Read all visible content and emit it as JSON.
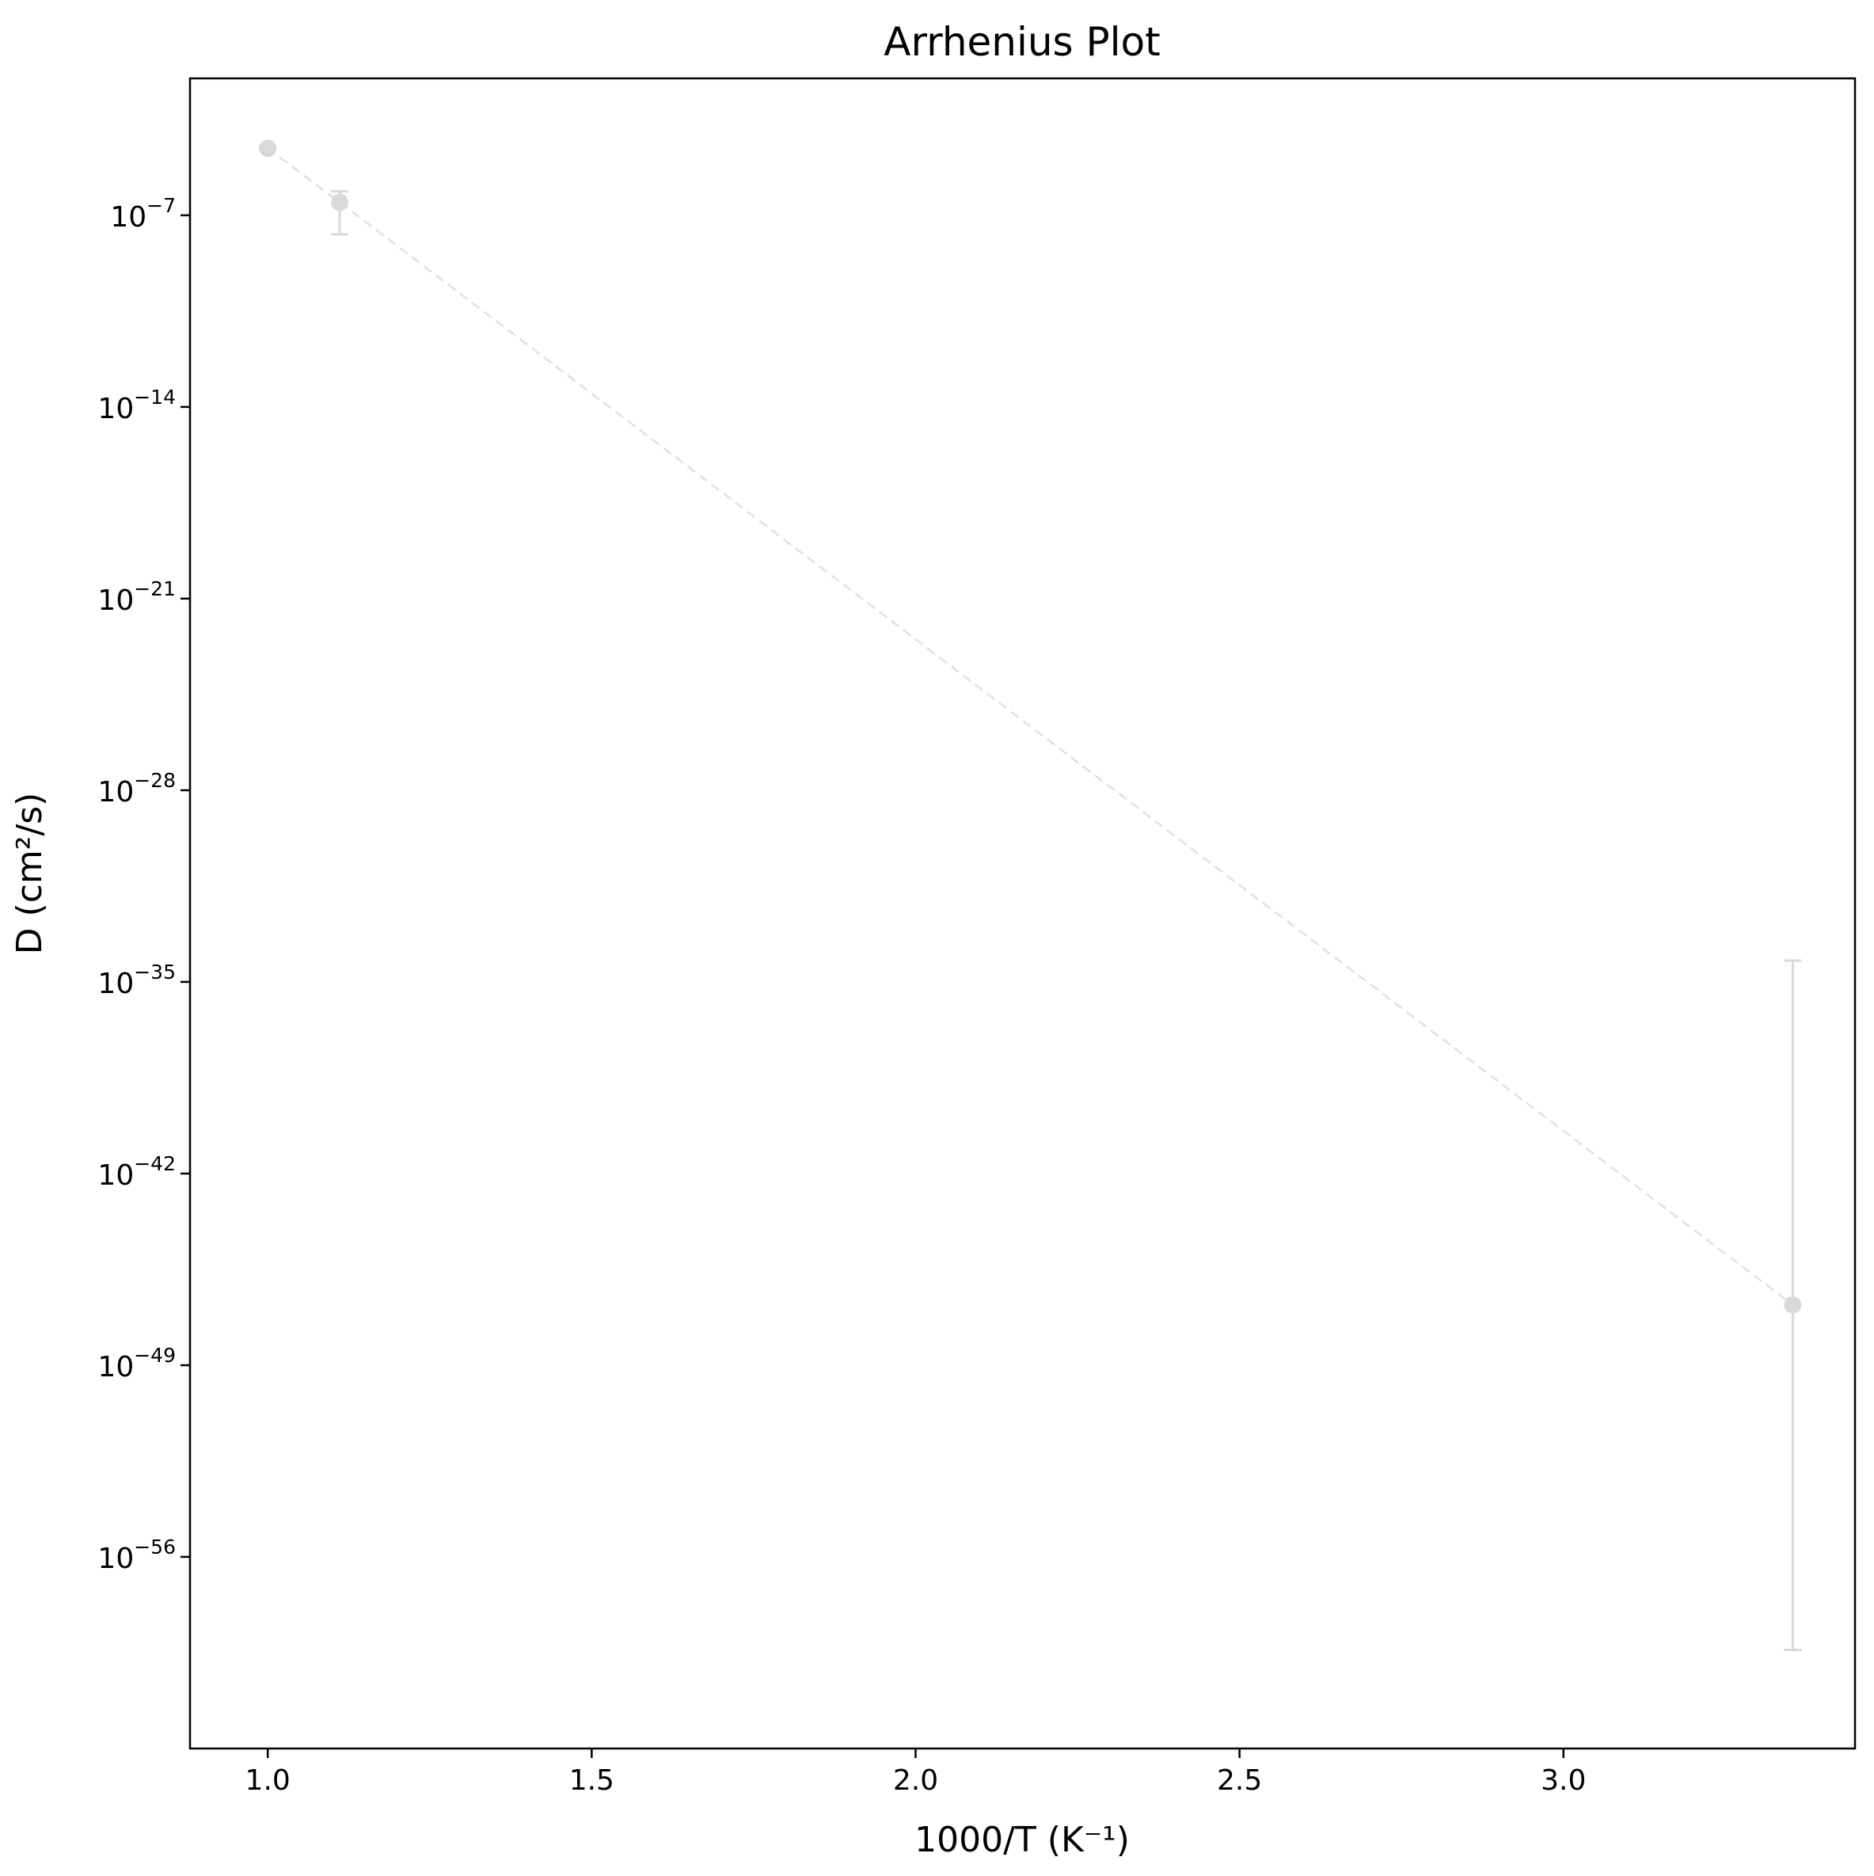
{
  "chart_data": {
    "type": "scatter",
    "title": "Arrhenius Plot",
    "xlabel": "1000/T (K⁻¹)",
    "ylabel": "D (cm²/s)",
    "xscale": "linear",
    "yscale": "log",
    "xlim": [
      0.88,
      3.45
    ],
    "ylim": [
      1e-63,
      0.01
    ],
    "x_ticks": [
      {
        "value": 1.0,
        "label": "1.0"
      },
      {
        "value": 1.5,
        "label": "1.5"
      },
      {
        "value": 2.0,
        "label": "2.0"
      },
      {
        "value": 2.5,
        "label": "2.5"
      },
      {
        "value": 3.0,
        "label": "3.0"
      }
    ],
    "y_ticks": [
      {
        "value": 1e-07,
        "base": "10",
        "exponent": "−7"
      },
      {
        "value": 1e-14,
        "base": "10",
        "exponent": "−14"
      },
      {
        "value": 1e-21,
        "base": "10",
        "exponent": "−21"
      },
      {
        "value": 1e-28,
        "base": "10",
        "exponent": "−28"
      },
      {
        "value": 1e-35,
        "base": "10",
        "exponent": "−35"
      },
      {
        "value": 1e-42,
        "base": "10",
        "exponent": "−42"
      },
      {
        "value": 1e-49,
        "base": "10",
        "exponent": "−49"
      },
      {
        "value": 1e-56,
        "base": "10",
        "exponent": "−56"
      }
    ],
    "grid": false,
    "legend": false,
    "marker_color": "#d9d9d9",
    "line_color": "#e0e0e0",
    "line_style": "dashed",
    "series": [
      {
        "points": [
          {
            "x": 1.0,
            "y": 2.8e-05,
            "yerr_low": null,
            "yerr_high": null
          },
          {
            "x": 1.111,
            "y": 3e-07,
            "yerr_low": 2e-08,
            "yerr_high": 7.5e-07
          },
          {
            "x": 3.354,
            "y": 1.6e-47,
            "yerr_low": 4e-60,
            "yerr_high": 6e-35
          }
        ]
      }
    ]
  }
}
